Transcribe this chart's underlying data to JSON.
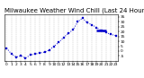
{
  "title": "Milwaukee Weather Wind Chill (Last 24 Hours)",
  "x_values": [
    0,
    1,
    2,
    3,
    4,
    5,
    6,
    7,
    8,
    9,
    10,
    11,
    12,
    13,
    14,
    15,
    16,
    17,
    18,
    19,
    20,
    21,
    22,
    23
  ],
  "y_values": [
    3,
    -3,
    -6,
    -5,
    -7,
    -4,
    -3,
    -2,
    -1,
    1,
    5,
    9,
    14,
    18,
    22,
    30,
    34,
    29,
    27,
    24,
    21,
    19,
    17,
    16
  ],
  "hline_y": 21,
  "hline_x1": 19,
  "hline_x2": 21,
  "line_color": "#0000cc",
  "hline_color": "#0000cc",
  "marker": "s",
  "marker_size": 1.5,
  "linestyle": "dotted",
  "linewidth": 0.7,
  "ylim": [
    -10,
    38
  ],
  "xlim": [
    -0.5,
    23.5
  ],
  "yticks": [
    -5,
    0,
    5,
    10,
    15,
    20,
    25,
    30,
    35
  ],
  "xtick_labels": [
    "0",
    "",
    "",
    "2",
    "",
    "",
    "4",
    "",
    "",
    "6",
    "",
    "",
    "8",
    "",
    "",
    "10",
    "",
    "",
    "12",
    "",
    "",
    "14",
    "",
    "",
    "16",
    "",
    "",
    "18",
    "",
    "",
    "20",
    "",
    "",
    "22",
    "",
    ""
  ],
  "grid_color": "#bbbbbb",
  "bg_color": "#ffffff",
  "title_fontsize": 5.0,
  "tick_fontsize": 3.2,
  "title_color": "#000000"
}
